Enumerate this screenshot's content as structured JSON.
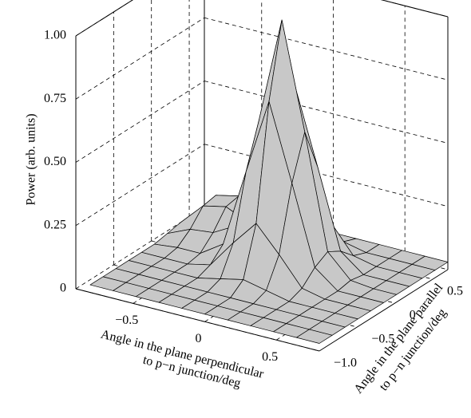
{
  "chart_data": {
    "type": "surface",
    "zlabel": "Power (arb. units)",
    "xlabel": [
      "Angle in the plane perpendicular",
      "to p−n junction/deg"
    ],
    "ylabel": [
      "Angle in the plane parallel",
      "to p−n junction/deg"
    ],
    "x": [
      -0.8,
      -0.64,
      -0.48,
      -0.32,
      -0.16,
      0,
      0.16,
      0.32,
      0.48,
      0.64,
      0.8
    ],
    "y": [
      -1.0,
      -0.83,
      -0.66,
      -0.49,
      -0.32,
      -0.15,
      0.02,
      0.19,
      0.36,
      0.53,
      0.7
    ],
    "z": [
      [
        0.03,
        0.03,
        0.03,
        0.03,
        0.03,
        0.03,
        0.03,
        0.03,
        0.03,
        0.03,
        0.03
      ],
      [
        0.03,
        0.03,
        0.03,
        0.03,
        0.03,
        0.03,
        0.03,
        0.03,
        0.03,
        0.03,
        0.03
      ],
      [
        0.03,
        0.03,
        0.03,
        0.03,
        0.03,
        0.03,
        0.03,
        0.03,
        0.03,
        0.03,
        0.03
      ],
      [
        0.03,
        0.03,
        0.03,
        0.03,
        0.05,
        0.07,
        0.05,
        0.03,
        0.03,
        0.03,
        0.03
      ],
      [
        0.03,
        0.03,
        0.03,
        0.05,
        0.16,
        0.26,
        0.16,
        0.05,
        0.03,
        0.03,
        0.03
      ],
      [
        0.03,
        0.04,
        0.04,
        0.1,
        0.41,
        0.71,
        0.41,
        0.1,
        0.03,
        0.03,
        0.03
      ],
      [
        0.04,
        0.08,
        0.09,
        0.14,
        0.58,
        1.0,
        0.58,
        0.13,
        0.04,
        0.03,
        0.03
      ],
      [
        0.05,
        0.14,
        0.16,
        0.12,
        0.41,
        0.71,
        0.41,
        0.1,
        0.03,
        0.03,
        0.03
      ],
      [
        0.05,
        0.15,
        0.17,
        0.08,
        0.16,
        0.26,
        0.16,
        0.05,
        0.03,
        0.03,
        0.03
      ],
      [
        0.04,
        0.1,
        0.1,
        0.04,
        0.05,
        0.07,
        0.05,
        0.03,
        0.03,
        0.03,
        0.03
      ],
      [
        0.03,
        0.05,
        0.05,
        0.03,
        0.03,
        0.03,
        0.03,
        0.03,
        0.03,
        0.03,
        0.03
      ]
    ],
    "color": "#c8c8c8",
    "xlim": [
      -0.9,
      0.8
    ],
    "ylim": [
      -1.0,
      0.7
    ],
    "zlim": [
      0,
      1
    ],
    "xticks": [
      {
        "value": -0.5,
        "label": "−0.5"
      },
      0,
      0.5
    ],
    "yticks": [
      {
        "value": -1.0,
        "label": "−1.0"
      },
      {
        "value": -0.5,
        "label": "−0.5"
      },
      0,
      0.5
    ],
    "zticks": [
      0,
      0.25,
      {
        "value": 0.5,
        "label": "0.50"
      },
      0.75,
      {
        "value": 1.0,
        "label": "1.00"
      }
    ],
    "grid": true
  }
}
